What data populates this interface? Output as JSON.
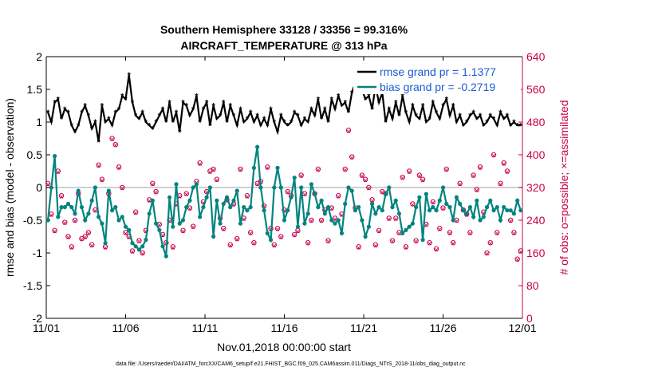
{
  "chart_data": {
    "type": "line",
    "title": "Southern Hemisphere 33128 / 33356 = 99.316%",
    "subtitle": "AIRCRAFT_TEMPERATURE @ 313 hPa",
    "xlabel": "Nov.01,2018 00:00:00 start",
    "ylabel": "rmse and bias (model - observation)",
    "ylabel_right": "# of obs: o=possible; ×=assimilated",
    "footnote": "data file: /Users/raeder/DAI/ATM_forcXX/CAM6_setup/f.e21.FHIST_BGC.f09_025.CAM6assim.011/Diags_NTrS_2018-11/obs_diag_output.nc",
    "x_ticks": [
      "11/01",
      "11/06",
      "11/11",
      "11/16",
      "11/21",
      "11/26",
      "12/01"
    ],
    "xlim": [
      0,
      30
    ],
    "ylim": [
      -2,
      2
    ],
    "y_ticks": [
      "2",
      "1.5",
      "1",
      "0.5",
      "0",
      "-0.5",
      "-1",
      "-1.5",
      "-2"
    ],
    "ylim_right": [
      0,
      640
    ],
    "y_ticks_right": [
      "640",
      "560",
      "480",
      "400",
      "320",
      "240",
      "160",
      "80",
      "0"
    ],
    "legend": [
      {
        "label": "rmse grand pr = 1.1377",
        "color": "#000000"
      },
      {
        "label": "bias grand pr = -0.2719",
        "color": "#00847f"
      }
    ],
    "series": [
      {
        "name": "rmse",
        "color": "#000000",
        "values": [
          1.15,
          1.0,
          1.3,
          1.35,
          1.05,
          1.2,
          1.15,
          0.95,
          0.85,
          0.95,
          1.15,
          1.25,
          1.1,
          0.9,
          1.0,
          0.7,
          1.25,
          1.0,
          1.05,
          0.95,
          1.15,
          1.2,
          1.4,
          1.35,
          1.72,
          1.3,
          1.1,
          1.05,
          1.15,
          1.0,
          0.95,
          0.9,
          1.0,
          1.1,
          1.2,
          1.0,
          1.3,
          1.0,
          1.15,
          0.85,
          1.3,
          1.25,
          1.1,
          1.2,
          1.4,
          1.0,
          1.2,
          1.3,
          0.95,
          1.25,
          1.05,
          1.1,
          1.3,
          1.0,
          1.25,
          1.1,
          0.95,
          1.2,
          1.0,
          1.05,
          1.15,
          1.0,
          1.1,
          0.95,
          1.05,
          0.95,
          1.2,
          1.0,
          0.85,
          1.1,
          1.0,
          0.95,
          1.0,
          1.15,
          1.1,
          0.95,
          1.05,
          1.0,
          1.2,
          1.1,
          1.35,
          1.05,
          1.2,
          1.0,
          1.35,
          1.2,
          1.4,
          1.25,
          1.3,
          1.15,
          1.45,
          1.6,
          1.55,
          1.5,
          1.35,
          1.4,
          1.2,
          1.55,
          1.3,
          1.45,
          1.0,
          1.2,
          1.05,
          1.3,
          1.1,
          1.4,
          1.15,
          1.0,
          1.25,
          1.1,
          1.05,
          1.25,
          1.0,
          1.05,
          1.3,
          1.15,
          1.05,
          1.25,
          1.35,
          1.1,
          1.25,
          1.0,
          1.1,
          0.95,
          1.0,
          1.1,
          1.15,
          1.05,
          1.1,
          0.95,
          1.0,
          1.1,
          1.05,
          0.95,
          1.15,
          1.05,
          1.1,
          0.95,
          1.0,
          0.95,
          0.95
        ]
      },
      {
        "name": "bias",
        "color": "#00847f",
        "values": [
          -0.5,
          0.0,
          0.48,
          -0.45,
          -0.3,
          -0.3,
          -0.25,
          -0.3,
          -0.4,
          -0.05,
          -0.3,
          -0.5,
          -0.4,
          -0.2,
          0.0,
          -0.45,
          -0.55,
          -0.85,
          -0.05,
          -0.35,
          -0.3,
          -0.5,
          -0.45,
          -0.6,
          -0.65,
          -0.85,
          -0.9,
          -0.95,
          -0.9,
          -0.8,
          -0.4,
          -0.2,
          -0.55,
          -0.65,
          -0.9,
          -1.05,
          -0.15,
          -0.6,
          0.05,
          -0.55,
          -0.5,
          -0.3,
          -0.2,
          0.0,
          0.05,
          -0.45,
          -0.3,
          -0.15,
          0.0,
          -0.75,
          -0.2,
          -0.55,
          -0.25,
          -0.15,
          -0.3,
          -0.2,
          -0.05,
          -0.55,
          -0.3,
          -0.35,
          -0.3,
          0.3,
          0.62,
          0.0,
          -0.35,
          -0.7,
          -0.8,
          0.0,
          0.3,
          0.0,
          -0.5,
          -0.35,
          -0.15,
          0.15,
          -0.6,
          0.0,
          -0.55,
          -0.4,
          0.05,
          -0.1,
          -0.3,
          -0.2,
          -0.4,
          -0.3,
          -0.5,
          -0.55,
          -0.5,
          -0.7,
          -0.25,
          0.0,
          -0.05,
          -0.35,
          -0.3,
          -0.5,
          -0.75,
          -0.6,
          -0.25,
          -0.4,
          -0.3,
          -0.35,
          -0.1,
          0.0,
          -0.3,
          -0.2,
          -0.4,
          -0.7,
          -0.65,
          -0.6,
          -0.55,
          -0.3,
          -0.15,
          -0.8,
          -0.1,
          -0.35,
          -0.3,
          -0.35,
          -0.2,
          0.0,
          -0.25,
          -0.3,
          -0.5,
          -0.15,
          -0.25,
          -0.35,
          -0.4,
          -0.3,
          -0.45,
          -0.2,
          -0.5,
          -0.45,
          -0.3,
          -0.2,
          -0.35,
          -0.3,
          -0.5,
          -0.3,
          -0.35,
          -0.35,
          -0.4,
          -0.2,
          -0.35
        ]
      },
      {
        "name": "obs_possible",
        "color": "#c8004b",
        "values": [
          330,
          255,
          215,
          360,
          300,
          235,
          200,
          175,
          240,
          305,
          195,
          200,
          210,
          180,
          265,
          375,
          340,
          175,
          305,
          440,
          425,
          370,
          320,
          210,
          200,
          165,
          260,
          190,
          160,
          215,
          290,
          330,
          310,
          230,
          205,
          185,
          240,
          175,
          280,
          300,
          215,
          305,
          270,
          225,
          335,
          380,
          285,
          310,
          360,
          365,
          340,
          245,
          220,
          290,
          180,
          280,
          195,
          365,
          245,
          300,
          210,
          185,
          330,
          335,
          275,
          370,
          220,
          180,
          220,
          200,
          265,
          310,
          300,
          205,
          215,
          350,
          305,
          185,
          240,
          305,
          365,
          240,
          265,
          190,
          270,
          245,
          300,
          255,
          365,
          460,
          395,
          270,
          175,
          350,
          340,
          320,
          290,
          180,
          215,
          310,
          305,
          245,
          190,
          245,
          210,
          345,
          175,
          360,
          280,
          190,
          350,
          340,
          230,
          185,
          285,
          170,
          220,
          270,
          365,
          210,
          185,
          240,
          330,
          265,
          255,
          210,
          350,
          315,
          370,
          260,
          160,
          185,
          400,
          210,
          330,
          380,
          360,
          240,
          210,
          145,
          165
        ]
      }
    ]
  }
}
